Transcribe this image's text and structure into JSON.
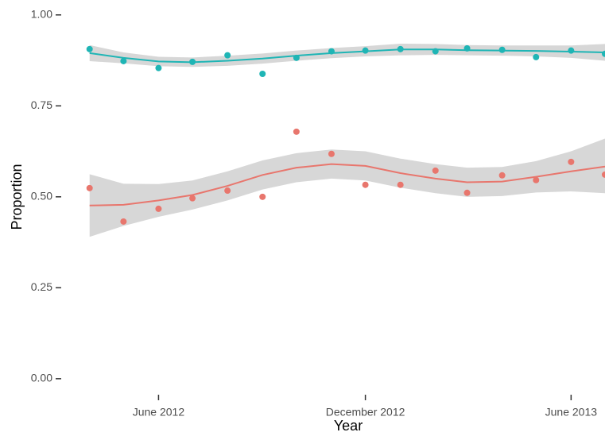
{
  "chart_data": {
    "type": "scatter-smooth",
    "x_label": "Year",
    "y_label": "Proportion",
    "x": [
      "2012-04",
      "2012-05",
      "2012-06",
      "2012-07",
      "2012-08",
      "2012-09",
      "2012-10",
      "2012-11",
      "2012-12",
      "2013-01",
      "2013-02",
      "2013-03",
      "2013-04",
      "2013-05",
      "2013-06",
      "2013-07"
    ],
    "xlim": [
      "2012-03-09",
      "2013-07-01"
    ],
    "xticks": [
      {
        "value": "2012-06-01",
        "label": "June 2012"
      },
      {
        "value": "2012-12-01",
        "label": "December 2012"
      },
      {
        "value": "2013-06-01",
        "label": "June 2013"
      }
    ],
    "ylim": [
      -0.044,
      1.041
    ],
    "yticks": [
      {
        "value": 0,
        "label": "0.00"
      },
      {
        "value": 0.25,
        "label": "0.25"
      },
      {
        "value": 0.5,
        "label": "0.50"
      },
      {
        "value": 0.75,
        "label": "0.75"
      },
      {
        "value": 1,
        "label": "1.00"
      }
    ],
    "band_color": "#d3d3d3",
    "series": [
      {
        "color": "#1fb5b5",
        "values": [
          0.906,
          0.873,
          0.854,
          0.871,
          0.889,
          0.838,
          0.882,
          0.9,
          0.902,
          0.906,
          0.9,
          0.908,
          0.904,
          0.884,
          0.902,
          0.893
        ],
        "smooth": [
          0.895,
          0.882,
          0.872,
          0.87,
          0.874,
          0.88,
          0.888,
          0.895,
          0.9,
          0.905,
          0.905,
          0.903,
          0.902,
          0.901,
          0.899,
          0.897
        ],
        "lower": [
          0.873,
          0.867,
          0.859,
          0.857,
          0.86,
          0.866,
          0.874,
          0.881,
          0.886,
          0.889,
          0.89,
          0.889,
          0.888,
          0.886,
          0.882,
          0.874
        ],
        "upper": [
          0.917,
          0.897,
          0.885,
          0.883,
          0.888,
          0.894,
          0.902,
          0.909,
          0.914,
          0.921,
          0.92,
          0.917,
          0.916,
          0.916,
          0.916,
          0.92
        ]
      },
      {
        "color": "#e8766d",
        "values": [
          0.524,
          0.432,
          0.467,
          0.496,
          0.517,
          0.5,
          0.679,
          0.618,
          0.533,
          0.533,
          0.572,
          0.511,
          0.559,
          0.546,
          0.596,
          0.561
        ],
        "smooth": [
          0.476,
          0.478,
          0.49,
          0.505,
          0.53,
          0.56,
          0.58,
          0.59,
          0.585,
          0.565,
          0.55,
          0.54,
          0.542,
          0.555,
          0.57,
          0.583
        ],
        "lower": [
          0.39,
          0.42,
          0.445,
          0.465,
          0.49,
          0.52,
          0.54,
          0.55,
          0.545,
          0.525,
          0.51,
          0.5,
          0.502,
          0.512,
          0.515,
          0.51
        ],
        "upper": [
          0.562,
          0.536,
          0.535,
          0.545,
          0.57,
          0.6,
          0.62,
          0.63,
          0.625,
          0.605,
          0.59,
          0.58,
          0.582,
          0.598,
          0.625,
          0.66
        ]
      }
    ]
  }
}
